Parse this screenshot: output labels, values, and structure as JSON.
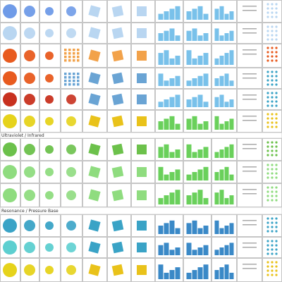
{
  "sections": {
    "section_2_label": "Ultraviolet / Infrared",
    "section_3_label": "Resonance / Pressure Base"
  },
  "palette": {
    "blue": "#6f9be8",
    "light_blue": "#b9d6f1",
    "orange": "#e85b1f",
    "orange_light": "#f2a24a",
    "red": "#c8311f",
    "yellow": "#e6d31b",
    "green": "#6cc14b",
    "green_light": "#8fdc7f",
    "teal": "#3aa3c6",
    "teal_light": "#5dcfd0",
    "steel_blue": "#6aa4d4",
    "bar_blue": "#79c1ea",
    "bar_green": "#6ad05b",
    "bar_teal": "#3a89c7",
    "gold": "#e9c21a"
  },
  "icons": {
    "dot": "circle-icon",
    "square": "square-icon",
    "tilted_square": "tilted-square-icon"
  }
}
